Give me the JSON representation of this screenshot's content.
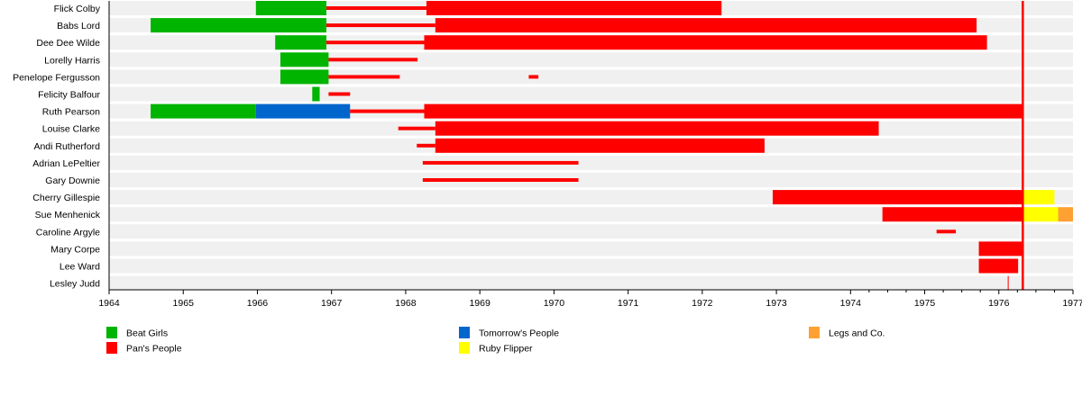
{
  "chart_data": {
    "type": "timeline",
    "xlim": [
      1964,
      1977
    ],
    "x_ticks": [
      "1964",
      "1965",
      "1966",
      "1967",
      "1968",
      "1969",
      "1970",
      "1971",
      "1972",
      "1973",
      "1974",
      "1975",
      "1976",
      "1977"
    ],
    "groups": [
      {
        "name": "Beat Girls",
        "color": "#00b400"
      },
      {
        "name": "Pan's People",
        "color": "#ff0000"
      },
      {
        "name": "Tomorrow's People",
        "color": "#0066cc"
      },
      {
        "name": "Ruby Flipper",
        "color": "#ffff00"
      },
      {
        "name": "Legs and Co.",
        "color": "#ffa033"
      }
    ],
    "marker_line": {
      "x": 1976.32,
      "color": "#ff0000"
    },
    "rows": [
      {
        "name": "Flick Colby",
        "segments": [
          [
            "Beat Girls",
            1965.98,
            1966.93,
            "bar"
          ],
          [
            "Pan's People",
            1966.93,
            1968.28,
            "line"
          ],
          [
            "Pan's People",
            1968.28,
            1972.26,
            "bar"
          ]
        ]
      },
      {
        "name": "Babs Lord",
        "segments": [
          [
            "Beat Girls",
            1964.56,
            1966.93,
            "bar"
          ],
          [
            "Pan's People",
            1966.93,
            1968.4,
            "line"
          ],
          [
            "Pan's People",
            1968.4,
            1975.7,
            "bar"
          ]
        ]
      },
      {
        "name": "Dee Dee Wilde",
        "segments": [
          [
            "Beat Girls",
            1966.24,
            1966.93,
            "bar"
          ],
          [
            "Pan's People",
            1966.93,
            1968.25,
            "line"
          ],
          [
            "Pan's People",
            1968.25,
            1975.84,
            "bar"
          ]
        ]
      },
      {
        "name": "Lorelly Harris",
        "segments": [
          [
            "Beat Girls",
            1966.31,
            1966.96,
            "bar"
          ],
          [
            "Pan's People",
            1966.96,
            1968.16,
            "line"
          ]
        ]
      },
      {
        "name": "Penelope Fergusson",
        "segments": [
          [
            "Beat Girls",
            1966.31,
            1966.96,
            "bar"
          ],
          [
            "Pan's People",
            1966.96,
            1967.92,
            "line"
          ],
          [
            "Pan's People",
            1969.66,
            1969.79,
            "line"
          ]
        ]
      },
      {
        "name": "Felicity Balfour",
        "segments": [
          [
            "Beat Girls",
            1966.74,
            1966.84,
            "bar"
          ],
          [
            "Pan's People",
            1966.96,
            1967.25,
            "line"
          ]
        ]
      },
      {
        "name": "Ruth Pearson",
        "segments": [
          [
            "Beat Girls",
            1964.56,
            1965.98,
            "bar"
          ],
          [
            "Tomorrow's People",
            1965.98,
            1967.25,
            "bar"
          ],
          [
            "Pan's People",
            1967.25,
            1968.25,
            "line"
          ],
          [
            "Pan's People",
            1968.25,
            1976.32,
            "bar"
          ]
        ]
      },
      {
        "name": "Louise Clarke",
        "segments": [
          [
            "Pan's People",
            1967.9,
            1968.4,
            "line"
          ],
          [
            "Pan's People",
            1968.4,
            1974.38,
            "bar"
          ]
        ]
      },
      {
        "name": "Andi Rutherford",
        "segments": [
          [
            "Pan's People",
            1968.15,
            1968.4,
            "line"
          ],
          [
            "Pan's People",
            1968.4,
            1972.84,
            "bar"
          ]
        ]
      },
      {
        "name": "Adrian LePeltier",
        "segments": [
          [
            "Pan's People",
            1968.23,
            1970.33,
            "line"
          ]
        ]
      },
      {
        "name": "Gary Downie",
        "segments": [
          [
            "Pan's People",
            1968.23,
            1970.33,
            "line"
          ]
        ]
      },
      {
        "name": "Cherry Gillespie",
        "segments": [
          [
            "Pan's People",
            1972.95,
            1976.32,
            "bar"
          ],
          [
            "Ruby Flipper",
            1976.32,
            1976.75,
            "bar"
          ]
        ]
      },
      {
        "name": "Sue Menhenick",
        "segments": [
          [
            "Pan's People",
            1974.43,
            1976.32,
            "bar"
          ],
          [
            "Ruby Flipper",
            1976.32,
            1976.8,
            "bar"
          ],
          [
            "Legs and Co.",
            1976.8,
            1977.0,
            "bar"
          ]
        ]
      },
      {
        "name": "Caroline Argyle",
        "segments": [
          [
            "Pan's People",
            1975.16,
            1975.42,
            "line"
          ]
        ]
      },
      {
        "name": "Mary Corpe",
        "segments": [
          [
            "Pan's People",
            1975.73,
            1976.32,
            "bar"
          ]
        ]
      },
      {
        "name": "Lee Ward",
        "segments": [
          [
            "Pan's People",
            1975.73,
            1976.26,
            "bar"
          ]
        ]
      },
      {
        "name": "Lesley Judd",
        "segments": [
          [
            "Pan's People",
            1976.12,
            1976.13,
            "tick"
          ]
        ]
      }
    ]
  }
}
